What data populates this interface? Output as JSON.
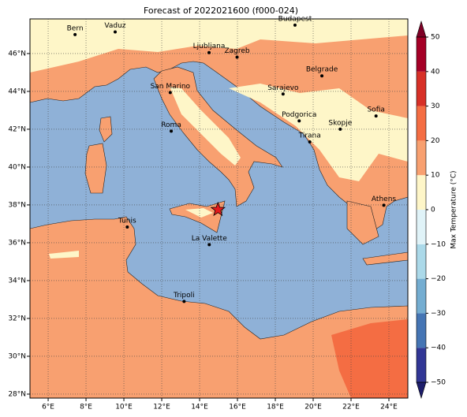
{
  "chart_data": {
    "type": "map",
    "title": "Forecast of 2022021600 (f000-024)",
    "xlim": [
      5.04,
      25
    ],
    "ylim": [
      27.79,
      47.83
    ],
    "xticks": [
      {
        "value": 6,
        "label": "6°E"
      },
      {
        "value": 8,
        "label": "8°E"
      },
      {
        "value": 10,
        "label": "10°E"
      },
      {
        "value": 12,
        "label": "12°E"
      },
      {
        "value": 14,
        "label": "14°E"
      },
      {
        "value": 16,
        "label": "16°E"
      },
      {
        "value": 18,
        "label": "18°E"
      },
      {
        "value": 20,
        "label": "20°E"
      },
      {
        "value": 22,
        "label": "22°E"
      },
      {
        "value": 24,
        "label": "24°E"
      }
    ],
    "yticks": [
      {
        "value": 28,
        "label": "28°N"
      },
      {
        "value": 30,
        "label": "30°N"
      },
      {
        "value": 32,
        "label": "32°N"
      },
      {
        "value": 34,
        "label": "34°N"
      },
      {
        "value": 36,
        "label": "36°N"
      },
      {
        "value": 38,
        "label": "38°N"
      },
      {
        "value": 40,
        "label": "40°N"
      },
      {
        "value": 42,
        "label": "42°N"
      },
      {
        "value": 44,
        "label": "44°N"
      },
      {
        "value": 46,
        "label": "46°N"
      }
    ],
    "grid": true,
    "cities": [
      {
        "name": "Bern",
        "lon": 7.42,
        "lat": 47.0
      },
      {
        "name": "Vaduz",
        "lon": 9.54,
        "lat": 47.14
      },
      {
        "name": "Budapest",
        "lon": 19.04,
        "lat": 47.5
      },
      {
        "name": "Ljubljana",
        "lon": 14.5,
        "lat": 46.05
      },
      {
        "name": "Zagreb",
        "lon": 15.98,
        "lat": 45.81
      },
      {
        "name": "Belgrade",
        "lon": 20.46,
        "lat": 44.82
      },
      {
        "name": "San Marino",
        "lon": 12.45,
        "lat": 43.94
      },
      {
        "name": "Sarajevo",
        "lon": 18.41,
        "lat": 43.86
      },
      {
        "name": "Podgorica",
        "lon": 19.26,
        "lat": 42.44
      },
      {
        "name": "Sofia",
        "lon": 23.32,
        "lat": 42.7
      },
      {
        "name": "Skopje",
        "lon": 21.43,
        "lat": 42.0
      },
      {
        "name": "Roma",
        "lon": 12.5,
        "lat": 41.9
      },
      {
        "name": "Tirana",
        "lon": 19.82,
        "lat": 41.33
      },
      {
        "name": "Athens",
        "lon": 23.73,
        "lat": 37.98
      },
      {
        "name": "Tunis",
        "lon": 10.18,
        "lat": 36.83
      },
      {
        "name": "La Valette",
        "lon": 14.51,
        "lat": 35.9
      },
      {
        "name": "Tripoli",
        "lon": 13.18,
        "lat": 32.9
      }
    ],
    "city_color": "#000000",
    "marker": {
      "lon": 14.97,
      "lat": 37.75,
      "color": "#e31a1c"
    },
    "colorbar": {
      "label": "Max Temperature (°C)",
      "clim": [
        -50,
        50
      ],
      "ticks": [
        {
          "value": -50,
          "label": "−50"
        },
        {
          "value": -40,
          "label": "−40"
        },
        {
          "value": -30,
          "label": "−30"
        },
        {
          "value": -20,
          "label": "−20"
        },
        {
          "value": -10,
          "label": "−10"
        },
        0,
        10,
        20,
        30,
        40,
        50
      ],
      "colors": [
        "#313695",
        "#4575b4",
        "#74add1",
        "#abd9e9",
        "#e0f3f8",
        "#fef6c8",
        "#f8a070",
        "#f46d43",
        "#d73027",
        "#a50026"
      ],
      "extend_colors": [
        "#1d1d6b",
        "#7f0026"
      ]
    }
  }
}
